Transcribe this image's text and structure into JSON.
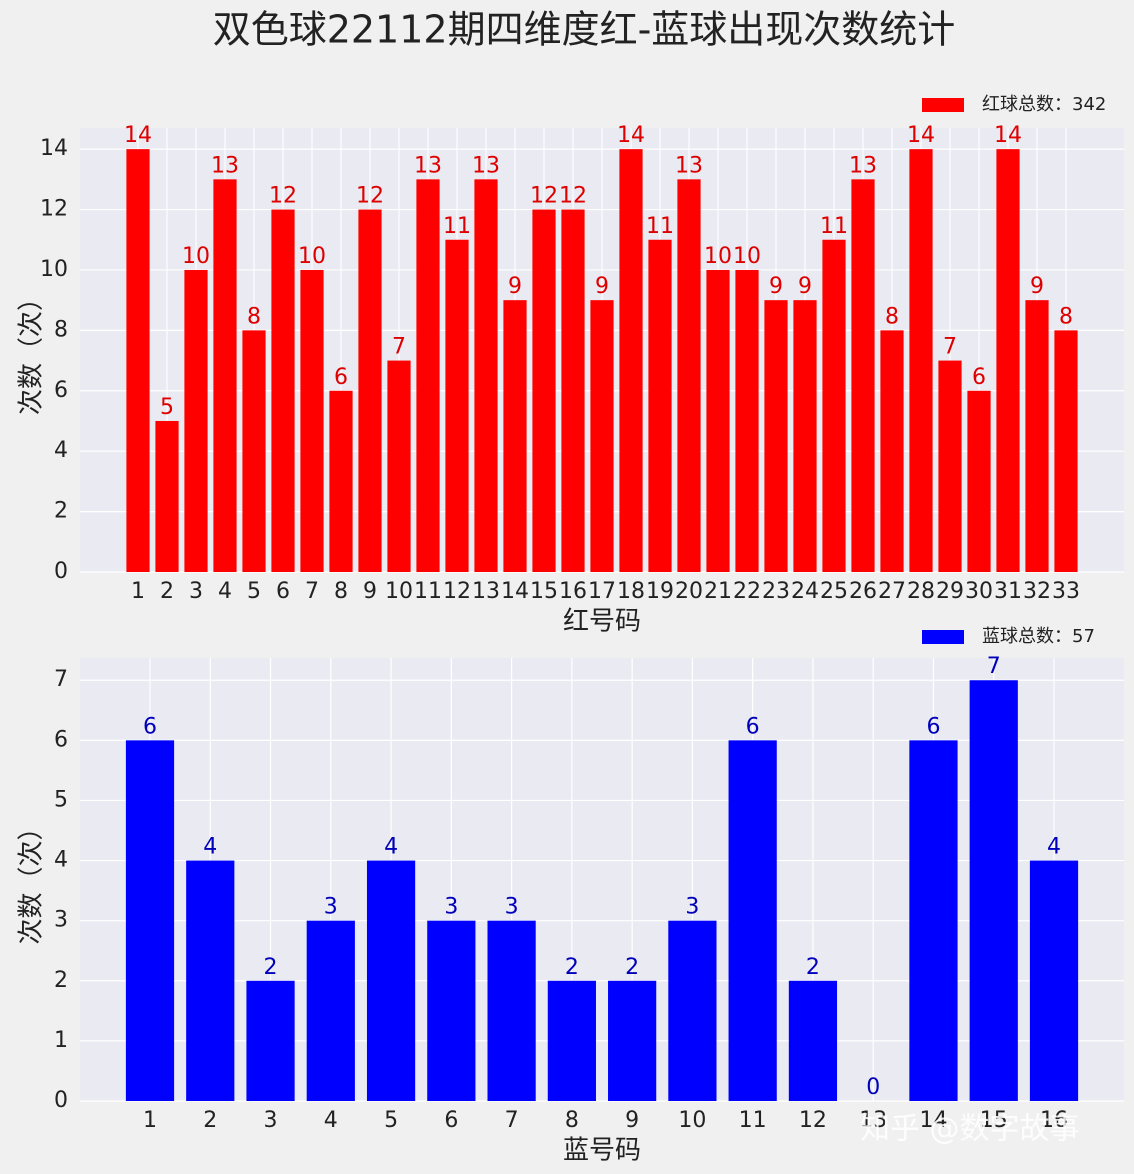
{
  "title": "双色球22112期四维度红-蓝球出现次数统计",
  "watermark": "知乎 @数字故事",
  "chart_data": [
    {
      "type": "bar",
      "ylabel": "次数（次）",
      "xlabel": "红号码",
      "legend": "红球总数：342",
      "legend_position": "upper right",
      "color": "#ff0000",
      "label_color": "#dd0000",
      "grid": true,
      "categories": [
        "1",
        "2",
        "3",
        "4",
        "5",
        "6",
        "7",
        "8",
        "9",
        "10",
        "11",
        "12",
        "13",
        "14",
        "15",
        "16",
        "17",
        "18",
        "19",
        "20",
        "21",
        "22",
        "23",
        "24",
        "25",
        "26",
        "27",
        "28",
        "29",
        "30",
        "31",
        "32",
        "33"
      ],
      "values": [
        14,
        5,
        10,
        13,
        8,
        12,
        10,
        6,
        12,
        7,
        13,
        11,
        13,
        9,
        12,
        12,
        9,
        14,
        11,
        13,
        10,
        10,
        9,
        9,
        11,
        13,
        8,
        14,
        7,
        6,
        14,
        9,
        8
      ],
      "ylim": [
        0,
        14.7
      ],
      "yticks": [
        0,
        2,
        4,
        6,
        8,
        10,
        12,
        14
      ]
    },
    {
      "type": "bar",
      "ylabel": "次数（次）",
      "xlabel": "蓝号码",
      "legend": "蓝球总数：57",
      "legend_position": "upper right",
      "color": "#0000ff",
      "label_color": "#0000bb",
      "grid": true,
      "categories": [
        "1",
        "2",
        "3",
        "4",
        "5",
        "6",
        "7",
        "8",
        "9",
        "10",
        "11",
        "12",
        "13",
        "14",
        "15",
        "16"
      ],
      "values": [
        6,
        4,
        2,
        3,
        4,
        3,
        3,
        2,
        2,
        3,
        6,
        2,
        0,
        6,
        7,
        4
      ],
      "ylim": [
        0,
        7.37
      ],
      "yticks": [
        0,
        1,
        2,
        3,
        4,
        5,
        6,
        7
      ]
    }
  ]
}
